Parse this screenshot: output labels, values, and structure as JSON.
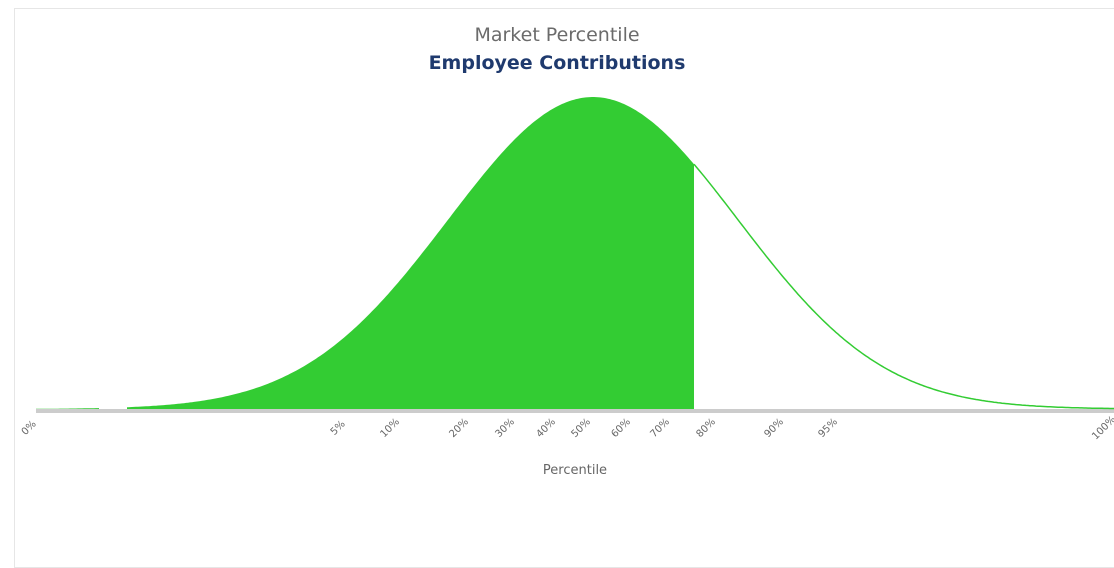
{
  "chart_data": {
    "type": "area",
    "title": "Market Percentile",
    "subtitle": "Employee Contributions",
    "xlabel": "Percentile",
    "ylabel": "",
    "x_tick_labels": [
      "0%",
      "5%",
      "10%",
      "20%",
      "30%",
      "40%",
      "50%",
      "60%",
      "70%",
      "80%",
      "90%",
      "95%",
      "100%"
    ],
    "curve": "normal-distribution",
    "shaded_up_to_percentile": 76,
    "grid": false,
    "legend": "none",
    "colors": {
      "fill": "#33cc33",
      "line": "#33cc33",
      "baseline": "#cccccc",
      "subtitle": "#1f3a6e",
      "title": "#6b6b6b"
    }
  }
}
